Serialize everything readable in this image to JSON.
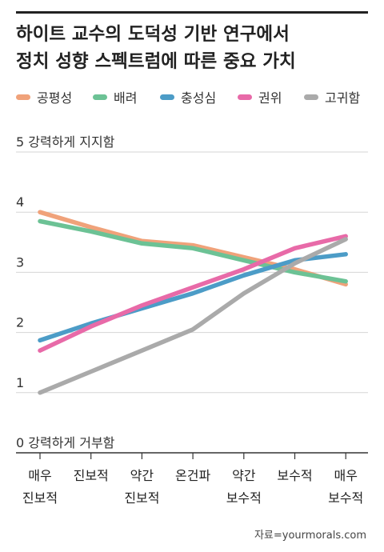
{
  "title_lines": [
    "하이트 교수의 도덕성 기반 연구에서",
    "정치 성향 스펙트럼에 따른 중요 가치"
  ],
  "source": "자료=yourmorals.com",
  "chart_data": {
    "type": "line",
    "x_labels": [
      [
        "매우",
        "진보적"
      ],
      [
        "진보적"
      ],
      [
        "약간",
        "진보적"
      ],
      [
        "온건파"
      ],
      [
        "약간",
        "보수적"
      ],
      [
        "보수적"
      ],
      [
        "매우",
        "보수적"
      ]
    ],
    "y_ticks": [
      {
        "value": 0,
        "label": "0 강력하게 거부함"
      },
      {
        "value": 1,
        "label": "1"
      },
      {
        "value": 2,
        "label": "2"
      },
      {
        "value": 3,
        "label": "3"
      },
      {
        "value": 4,
        "label": "4"
      },
      {
        "value": 5,
        "label": "5 강력하게 지지함"
      }
    ],
    "ylim": [
      0,
      5
    ],
    "grid": true,
    "legend_position": "top",
    "series": [
      {
        "name": "공평성",
        "color": "#F0A27A",
        "values": [
          4.0,
          3.75,
          3.52,
          3.45,
          3.25,
          3.05,
          2.8
        ]
      },
      {
        "name": "배려",
        "color": "#6CC295",
        "values": [
          3.85,
          3.68,
          3.48,
          3.4,
          3.2,
          3.0,
          2.85
        ]
      },
      {
        "name": "충성심",
        "color": "#4C9CC7",
        "values": [
          1.87,
          2.15,
          2.4,
          2.65,
          2.95,
          3.2,
          3.3
        ]
      },
      {
        "name": "권위",
        "color": "#E86AA8",
        "values": [
          1.7,
          2.1,
          2.45,
          2.75,
          3.05,
          3.4,
          3.6
        ]
      },
      {
        "name": "고귀함",
        "color": "#AAAAAA",
        "values": [
          1.0,
          1.35,
          1.7,
          2.05,
          2.65,
          3.15,
          3.55
        ]
      }
    ]
  }
}
